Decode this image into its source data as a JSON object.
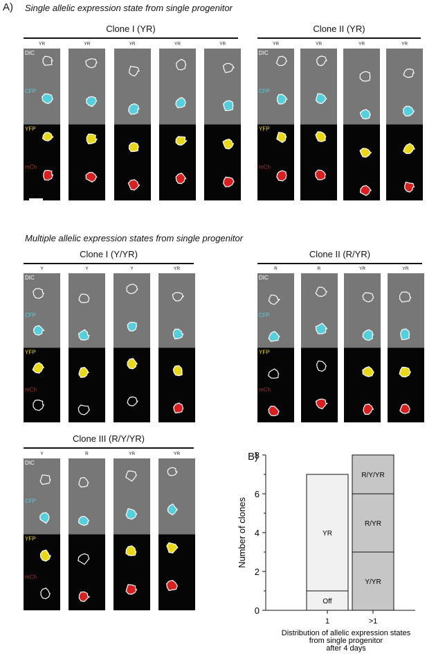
{
  "figure": {
    "panel_a_label": "A)",
    "panel_b_label": "B)",
    "section1_title": "Single allelic expression state from single progenitor",
    "section2_title": "Multiple allelic expression states from single progenitor",
    "channels": [
      "DIC",
      "CFP",
      "YFP",
      "mCh"
    ],
    "colors": {
      "dic_bg": "#777777",
      "cfp": "#55cfdc",
      "yfp": "#e9d81a",
      "mch": "#d82020"
    }
  },
  "clones": [
    {
      "title": "Clone I (YR)",
      "labels": [
        "YR",
        "YR",
        "YR",
        "YR",
        "YR"
      ],
      "yfp": [
        1,
        1,
        1,
        1,
        1
      ],
      "mch": [
        1,
        1,
        1,
        1,
        1
      ]
    },
    {
      "title": "Clone II (YR)",
      "labels": [
        "YR",
        "YR",
        "YR",
        "YR"
      ],
      "yfp": [
        1,
        1,
        1,
        1
      ],
      "mch": [
        1,
        1,
        1,
        1
      ]
    },
    {
      "title": "Clone I (Y/YR)",
      "labels": [
        "Y",
        "Y",
        "Y",
        "YR"
      ],
      "yfp": [
        1,
        1,
        1,
        1
      ],
      "mch": [
        0,
        0,
        0,
        1
      ]
    },
    {
      "title": "Clone II (R/YR)",
      "labels": [
        "R",
        "R",
        "YR",
        "YR"
      ],
      "yfp": [
        0,
        0,
        1,
        1
      ],
      "mch": [
        1,
        1,
        1,
        1
      ]
    },
    {
      "title": "Clone III (R/Y/YR)",
      "labels": [
        "Y",
        "R",
        "YR",
        "YR"
      ],
      "yfp": [
        1,
        0,
        1,
        1
      ],
      "mch": [
        0,
        1,
        1,
        1
      ]
    }
  ],
  "chart_data": {
    "type": "bar",
    "stacked": true,
    "categories": [
      "1",
      ">1"
    ],
    "series": [
      {
        "name": "Off",
        "values": [
          1,
          0
        ],
        "color": "#f1f1f1"
      },
      {
        "name": "YR",
        "values": [
          6,
          0
        ],
        "color": "#f1f1f1"
      },
      {
        "name": "Y/YR",
        "values": [
          0,
          3
        ],
        "color": "#c6c6c6"
      },
      {
        "name": "R/YR",
        "values": [
          0,
          3
        ],
        "color": "#c6c6c6"
      },
      {
        "name": "R/Y/YR",
        "values": [
          0,
          2
        ],
        "color": "#c6c6c6"
      }
    ],
    "ylabel": "Number of clones",
    "xlabel": "Distribution of allelic expression states from single progenitor after 4 days",
    "xlabel_lines": [
      "Distribution of allelic expression states",
      "from single progenitor",
      "after 4 days"
    ],
    "ylim": [
      0,
      8
    ],
    "yticks": [
      0,
      2,
      4,
      6,
      8
    ]
  }
}
